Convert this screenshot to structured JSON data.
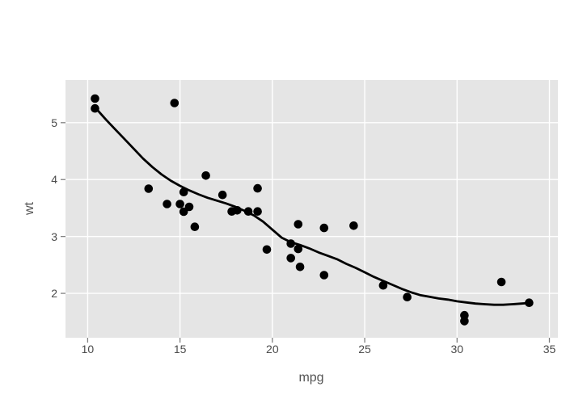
{
  "style": {
    "figure_bg": "#ffffff",
    "panel_bg": "#e5e5e5",
    "grid_color": "#ffffff",
    "grid_width": 1.4,
    "point_color": "#000000",
    "point_radius": 5.3,
    "line_color": "#000000",
    "line_width": 2.8,
    "tick_mark_color": "#808080",
    "tick_label_color": "#4a4a4a",
    "axis_title_color": "#555555"
  },
  "chart_data": {
    "type": "scatter",
    "title": "",
    "xlabel": "mpg",
    "ylabel": "wt",
    "x_ticks": [
      10,
      15,
      20,
      25,
      30,
      35
    ],
    "y_ticks": [
      2,
      3,
      4,
      5
    ],
    "xlim": [
      8.8,
      35.46
    ],
    "ylim": [
      1.22,
      5.75
    ],
    "grid": "major-only",
    "legend": "none",
    "points": [
      [
        21.0,
        2.62
      ],
      [
        21.0,
        2.875
      ],
      [
        22.8,
        2.32
      ],
      [
        21.4,
        3.215
      ],
      [
        18.7,
        3.44
      ],
      [
        18.1,
        3.46
      ],
      [
        14.3,
        3.57
      ],
      [
        24.4,
        3.19
      ],
      [
        22.8,
        3.15
      ],
      [
        19.2,
        3.44
      ],
      [
        17.8,
        3.44
      ],
      [
        16.4,
        4.07
      ],
      [
        17.3,
        3.73
      ],
      [
        15.2,
        3.78
      ],
      [
        10.4,
        5.25
      ],
      [
        10.4,
        5.424
      ],
      [
        14.7,
        5.345
      ],
      [
        32.4,
        2.2
      ],
      [
        30.4,
        1.615
      ],
      [
        33.9,
        1.835
      ],
      [
        21.5,
        2.465
      ],
      [
        15.5,
        3.52
      ],
      [
        15.2,
        3.435
      ],
      [
        13.3,
        3.84
      ],
      [
        19.2,
        3.845
      ],
      [
        27.3,
        1.935
      ],
      [
        26.0,
        2.14
      ],
      [
        30.4,
        1.513
      ],
      [
        15.8,
        3.17
      ],
      [
        19.7,
        2.77
      ],
      [
        15.0,
        3.57
      ],
      [
        21.4,
        2.78
      ]
    ],
    "smooth_line": [
      [
        10.4,
        5.27
      ],
      [
        11.0,
        5.05
      ],
      [
        11.5,
        4.88
      ],
      [
        12.0,
        4.71
      ],
      [
        12.5,
        4.54
      ],
      [
        13.0,
        4.37
      ],
      [
        13.5,
        4.22
      ],
      [
        14.0,
        4.09
      ],
      [
        14.5,
        3.98
      ],
      [
        15.0,
        3.89
      ],
      [
        15.5,
        3.81
      ],
      [
        16.0,
        3.74
      ],
      [
        16.5,
        3.68
      ],
      [
        17.0,
        3.63
      ],
      [
        17.5,
        3.58
      ],
      [
        18.0,
        3.52
      ],
      [
        18.5,
        3.45
      ],
      [
        19.0,
        3.37
      ],
      [
        19.5,
        3.26
      ],
      [
        20.0,
        3.12
      ],
      [
        20.5,
        2.98
      ],
      [
        21.0,
        2.9
      ],
      [
        21.5,
        2.85
      ],
      [
        22.0,
        2.79
      ],
      [
        22.5,
        2.72
      ],
      [
        23.0,
        2.66
      ],
      [
        23.5,
        2.6
      ],
      [
        24.0,
        2.52
      ],
      [
        24.5,
        2.45
      ],
      [
        25.0,
        2.37
      ],
      [
        25.5,
        2.29
      ],
      [
        26.0,
        2.22
      ],
      [
        26.5,
        2.15
      ],
      [
        27.0,
        2.08
      ],
      [
        27.5,
        2.02
      ],
      [
        28.0,
        1.97
      ],
      [
        28.5,
        1.94
      ],
      [
        29.0,
        1.91
      ],
      [
        29.5,
        1.89
      ],
      [
        30.0,
        1.86
      ],
      [
        30.5,
        1.84
      ],
      [
        31.0,
        1.82
      ],
      [
        31.5,
        1.81
      ],
      [
        32.0,
        1.8
      ],
      [
        32.5,
        1.8
      ],
      [
        33.0,
        1.81
      ],
      [
        33.5,
        1.82
      ],
      [
        33.9,
        1.83
      ]
    ]
  }
}
